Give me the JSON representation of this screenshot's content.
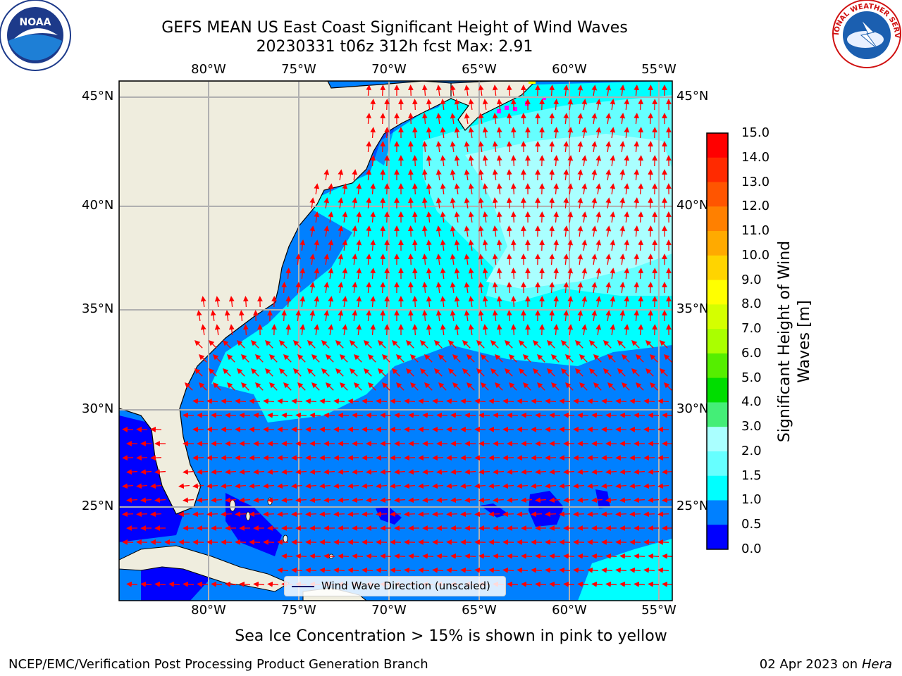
{
  "title": {
    "line1": "GEFS MEAN US East Coast Significant Height of Wind Waves",
    "line2": "20230331 t06z 312h fcst   Max: 2.91"
  },
  "map": {
    "lon_ticks": [
      "80°W",
      "75°W",
      "70°W",
      "65°W",
      "60°W",
      "55°W"
    ],
    "lat_ticks": [
      "45°N",
      "40°N",
      "35°N",
      "30°N",
      "25°N"
    ],
    "legend_label": "Wind Wave Direction (unscaled)",
    "arrow_color": "#ff0000",
    "land_color": "#efedde"
  },
  "colorbar": {
    "label": "Significant Height of Wind Waves [m]",
    "ticks": [
      "15.0",
      "14.0",
      "13.0",
      "12.0",
      "11.0",
      "10.0",
      "9.0",
      "8.0",
      "7.0",
      "6.0",
      "5.0",
      "4.0",
      "3.0",
      "2.0",
      "1.5",
      "1.0",
      "0.5",
      "0.0"
    ],
    "colors_top_to_bottom": [
      "#ff0000",
      "#ff2a00",
      "#ff5500",
      "#ff8000",
      "#ffaa00",
      "#ffd400",
      "#ffff00",
      "#d4ff00",
      "#aaff00",
      "#55ee00",
      "#00dd00",
      "#44ee77",
      "#aaffff",
      "#66ffff",
      "#00ffff",
      "#0080ff",
      "#0000ff"
    ]
  },
  "note": "Sea Ice Concentration > 15% is shown in pink to yellow",
  "footer": {
    "left": "NCEP/EMC/Verification Post Processing Product Generation Branch",
    "right_date": "02 Apr 2023 on",
    "right_machine": "Hera"
  },
  "logos": {
    "noaa_text": "NOAA",
    "nws_text": "NATIONAL WEATHER SERVICE"
  }
}
